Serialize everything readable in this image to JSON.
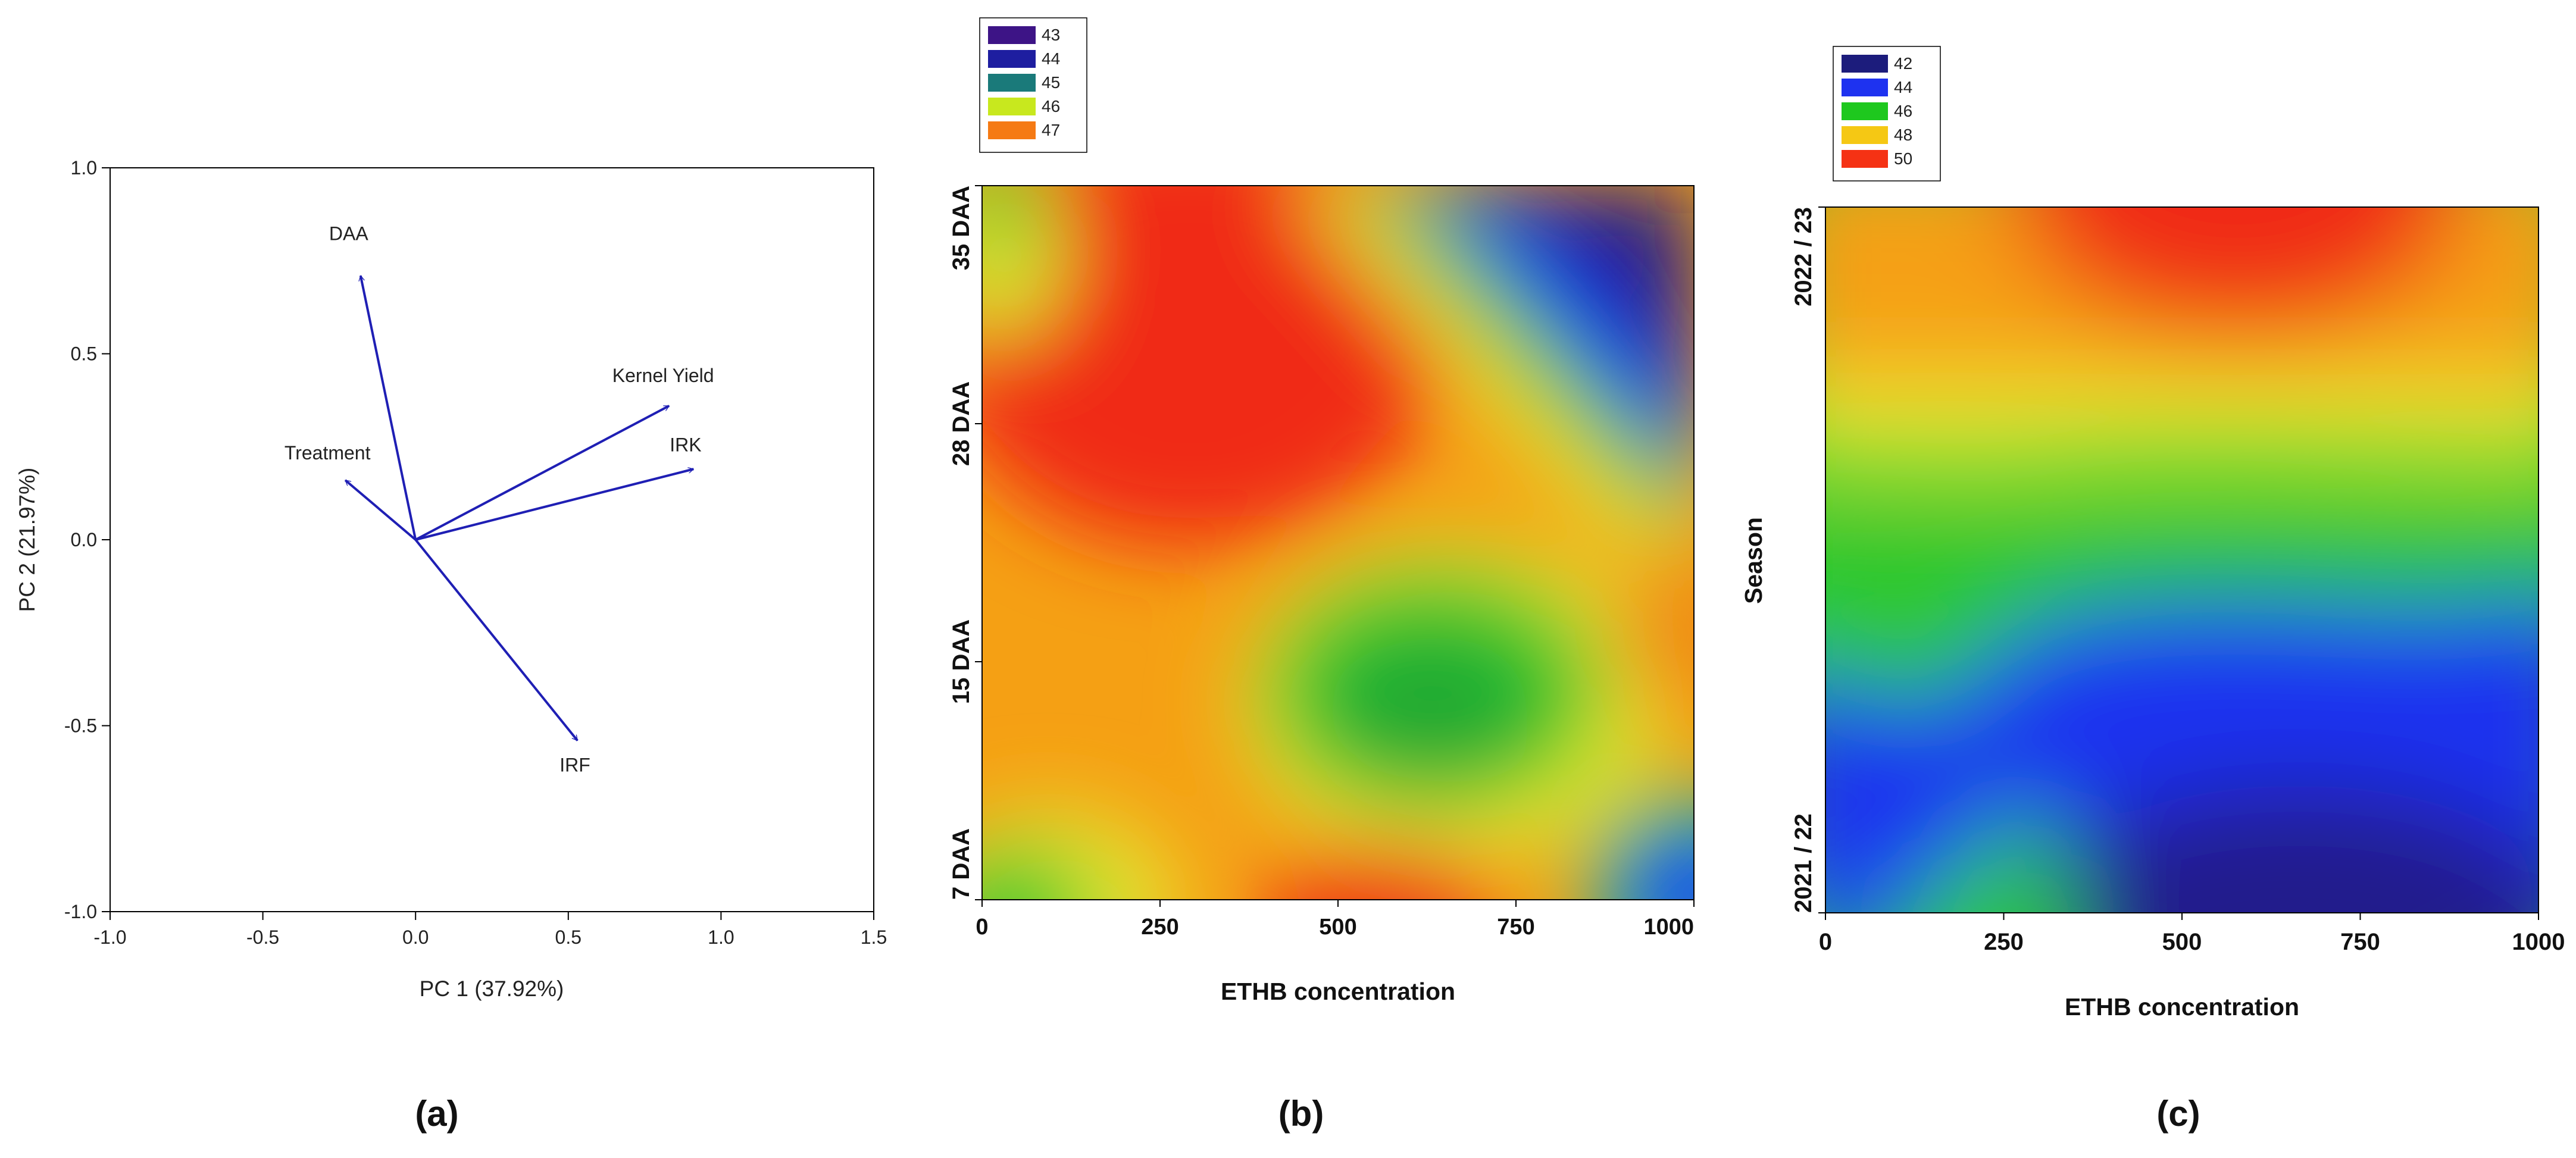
{
  "chart_data": [
    {
      "panel": "(a)",
      "type": "biplot",
      "xlabel": "PC 1 (37.92%)",
      "ylabel": "PC 2 (21.97%)",
      "xlim": [
        -1.0,
        1.5
      ],
      "ylim": [
        -1.0,
        1.0
      ],
      "xticks": [
        "-1.0",
        "-0.5",
        "0.0",
        "0.5",
        "1.0",
        "1.5"
      ],
      "yticks": [
        "1.0",
        "0.5",
        "0.0",
        "-0.5",
        "-1.0"
      ],
      "xtick_values": [
        -1.0,
        -0.5,
        0.0,
        0.5,
        1.0,
        1.5
      ],
      "ytick_values": [
        1.0,
        0.5,
        0.0,
        -0.5,
        -1.0
      ],
      "color": "#1f1fb4",
      "vectors": [
        {
          "label": "DAA",
          "x": -0.18,
          "y": 0.71
        },
        {
          "label": "Kernel Yield",
          "x": 0.83,
          "y": 0.36
        },
        {
          "label": "IRK",
          "x": 0.91,
          "y": 0.19
        },
        {
          "label": "Treatment",
          "x": -0.23,
          "y": 0.16
        },
        {
          "label": "IRF",
          "x": 0.53,
          "y": -0.54
        }
      ]
    },
    {
      "panel": "(b)",
      "type": "heatmap",
      "xlabel": "ETHB concentration",
      "ylabel": "",
      "xticks": [
        "0",
        "250",
        "500",
        "750",
        "1000"
      ],
      "xtick_values": [
        0,
        250,
        500,
        750,
        1000
      ],
      "yticks": [
        "7 DAA",
        "15 DAA",
        "28 DAA",
        "35 DAA"
      ],
      "legend": [
        {
          "label": "43",
          "color": "#3d1486"
        },
        {
          "label": "44",
          "color": "#1e1ea0"
        },
        {
          "label": "45",
          "color": "#1a7a7a"
        },
        {
          "label": "46",
          "color": "#c8e81e"
        },
        {
          "label": "47",
          "color": "#f57a14"
        }
      ],
      "features": [
        {
          "x": 280,
          "y": 2.3,
          "value": 47.6
        },
        {
          "x": 1000,
          "y": 3.0,
          "value": 43.0
        },
        {
          "x": 620,
          "y": 1.05,
          "value": 45.5
        },
        {
          "x": 1000,
          "y": 1.1,
          "value": 47.0
        },
        {
          "x": 550,
          "y": 0.0,
          "value": 47.3
        },
        {
          "x": 950,
          "y": 0.05,
          "value": 44.3
        },
        {
          "x": 0,
          "y": 0.0,
          "value": 45.8
        },
        {
          "x": 0,
          "y": 3.0,
          "value": 45.8
        }
      ]
    },
    {
      "panel": "(c)",
      "type": "heatmap",
      "xlabel": "ETHB concentration",
      "ylabel": "Season",
      "xticks": [
        "0",
        "250",
        "500",
        "750",
        "1000"
      ],
      "xtick_values": [
        0,
        250,
        500,
        750,
        1000
      ],
      "yticks": [
        "2021 / 22",
        "2022 / 23"
      ],
      "legend": [
        {
          "label": "42",
          "color": "#1c1c7c"
        },
        {
          "label": "44",
          "color": "#1e32f0"
        },
        {
          "label": "46",
          "color": "#1ec81e"
        },
        {
          "label": "48",
          "color": "#f5c814"
        },
        {
          "label": "50",
          "color": "#f53214"
        }
      ],
      "season_2022_23": [
        47.6,
        48.0,
        48.6,
        49.3,
        49.8,
        49.6,
        49.2,
        48.5,
        47.8
      ],
      "season_2021_22": [
        44.0,
        43.8,
        43.6,
        42.8,
        42.1,
        41.7,
        41.6,
        41.6,
        41.8
      ]
    }
  ],
  "panel_labels": [
    "(a)",
    "(b)",
    "(c)"
  ]
}
